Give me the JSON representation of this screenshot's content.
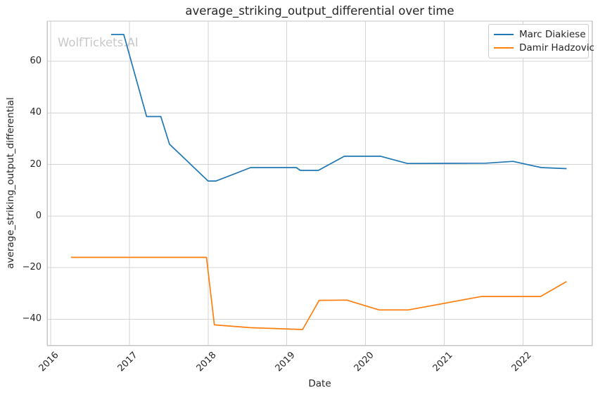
{
  "chart_data": {
    "type": "line",
    "title": "average_striking_output_differential over time",
    "xlabel": "Date",
    "ylabel": "average_striking_output_differential",
    "watermark": "WolfTickets.AI",
    "grid": true,
    "legend_position": "upper right",
    "xlim": [
      2015.96,
      2022.875
    ],
    "ylim": [
      -50.2,
      75.6
    ],
    "x_ticks": {
      "values": [
        2016,
        2017,
        2018,
        2019,
        2020,
        2021,
        2022
      ],
      "labels": [
        "2016",
        "2017",
        "2018",
        "2019",
        "2020",
        "2021",
        "2022"
      ]
    },
    "y_ticks": {
      "values": [
        60,
        40,
        20,
        0,
        -20,
        -40
      ],
      "labels": [
        "60",
        "40",
        "20",
        "0",
        "−20",
        "−40"
      ]
    },
    "series": [
      {
        "name": "Marc Diakiese",
        "color": "#1f77b4",
        "x": [
          2016.77,
          2016.93,
          2017.22,
          2017.4,
          2017.51,
          2018.0,
          2018.1,
          2018.54,
          2019.12,
          2019.17,
          2019.4,
          2019.73,
          2020.19,
          2020.53,
          2021.52,
          2021.87,
          2022.23,
          2022.55
        ],
        "y": [
          70.4,
          70.4,
          38.6,
          38.6,
          27.9,
          13.6,
          13.6,
          18.8,
          18.8,
          17.7,
          17.7,
          23.2,
          23.2,
          20.4,
          20.5,
          21.2,
          18.8,
          18.4
        ]
      },
      {
        "name": "Damir Hadzovic",
        "color": "#ff7f0e",
        "x": [
          2016.26,
          2017.98,
          2018.08,
          2018.54,
          2019.2,
          2019.41,
          2019.76,
          2020.17,
          2020.54,
          2021.47,
          2022.22,
          2022.55
        ],
        "y": [
          -16.0,
          -16.0,
          -42.2,
          -43.3,
          -44.0,
          -32.7,
          -32.6,
          -36.4,
          -36.4,
          -31.2,
          -31.2,
          -25.4
        ]
      }
    ],
    "colors": {
      "grid": "#d4d4d4",
      "spine": "#c6c6c6",
      "text": "#262626",
      "watermark": "#c8c8c8",
      "background": "#ffffff"
    }
  }
}
